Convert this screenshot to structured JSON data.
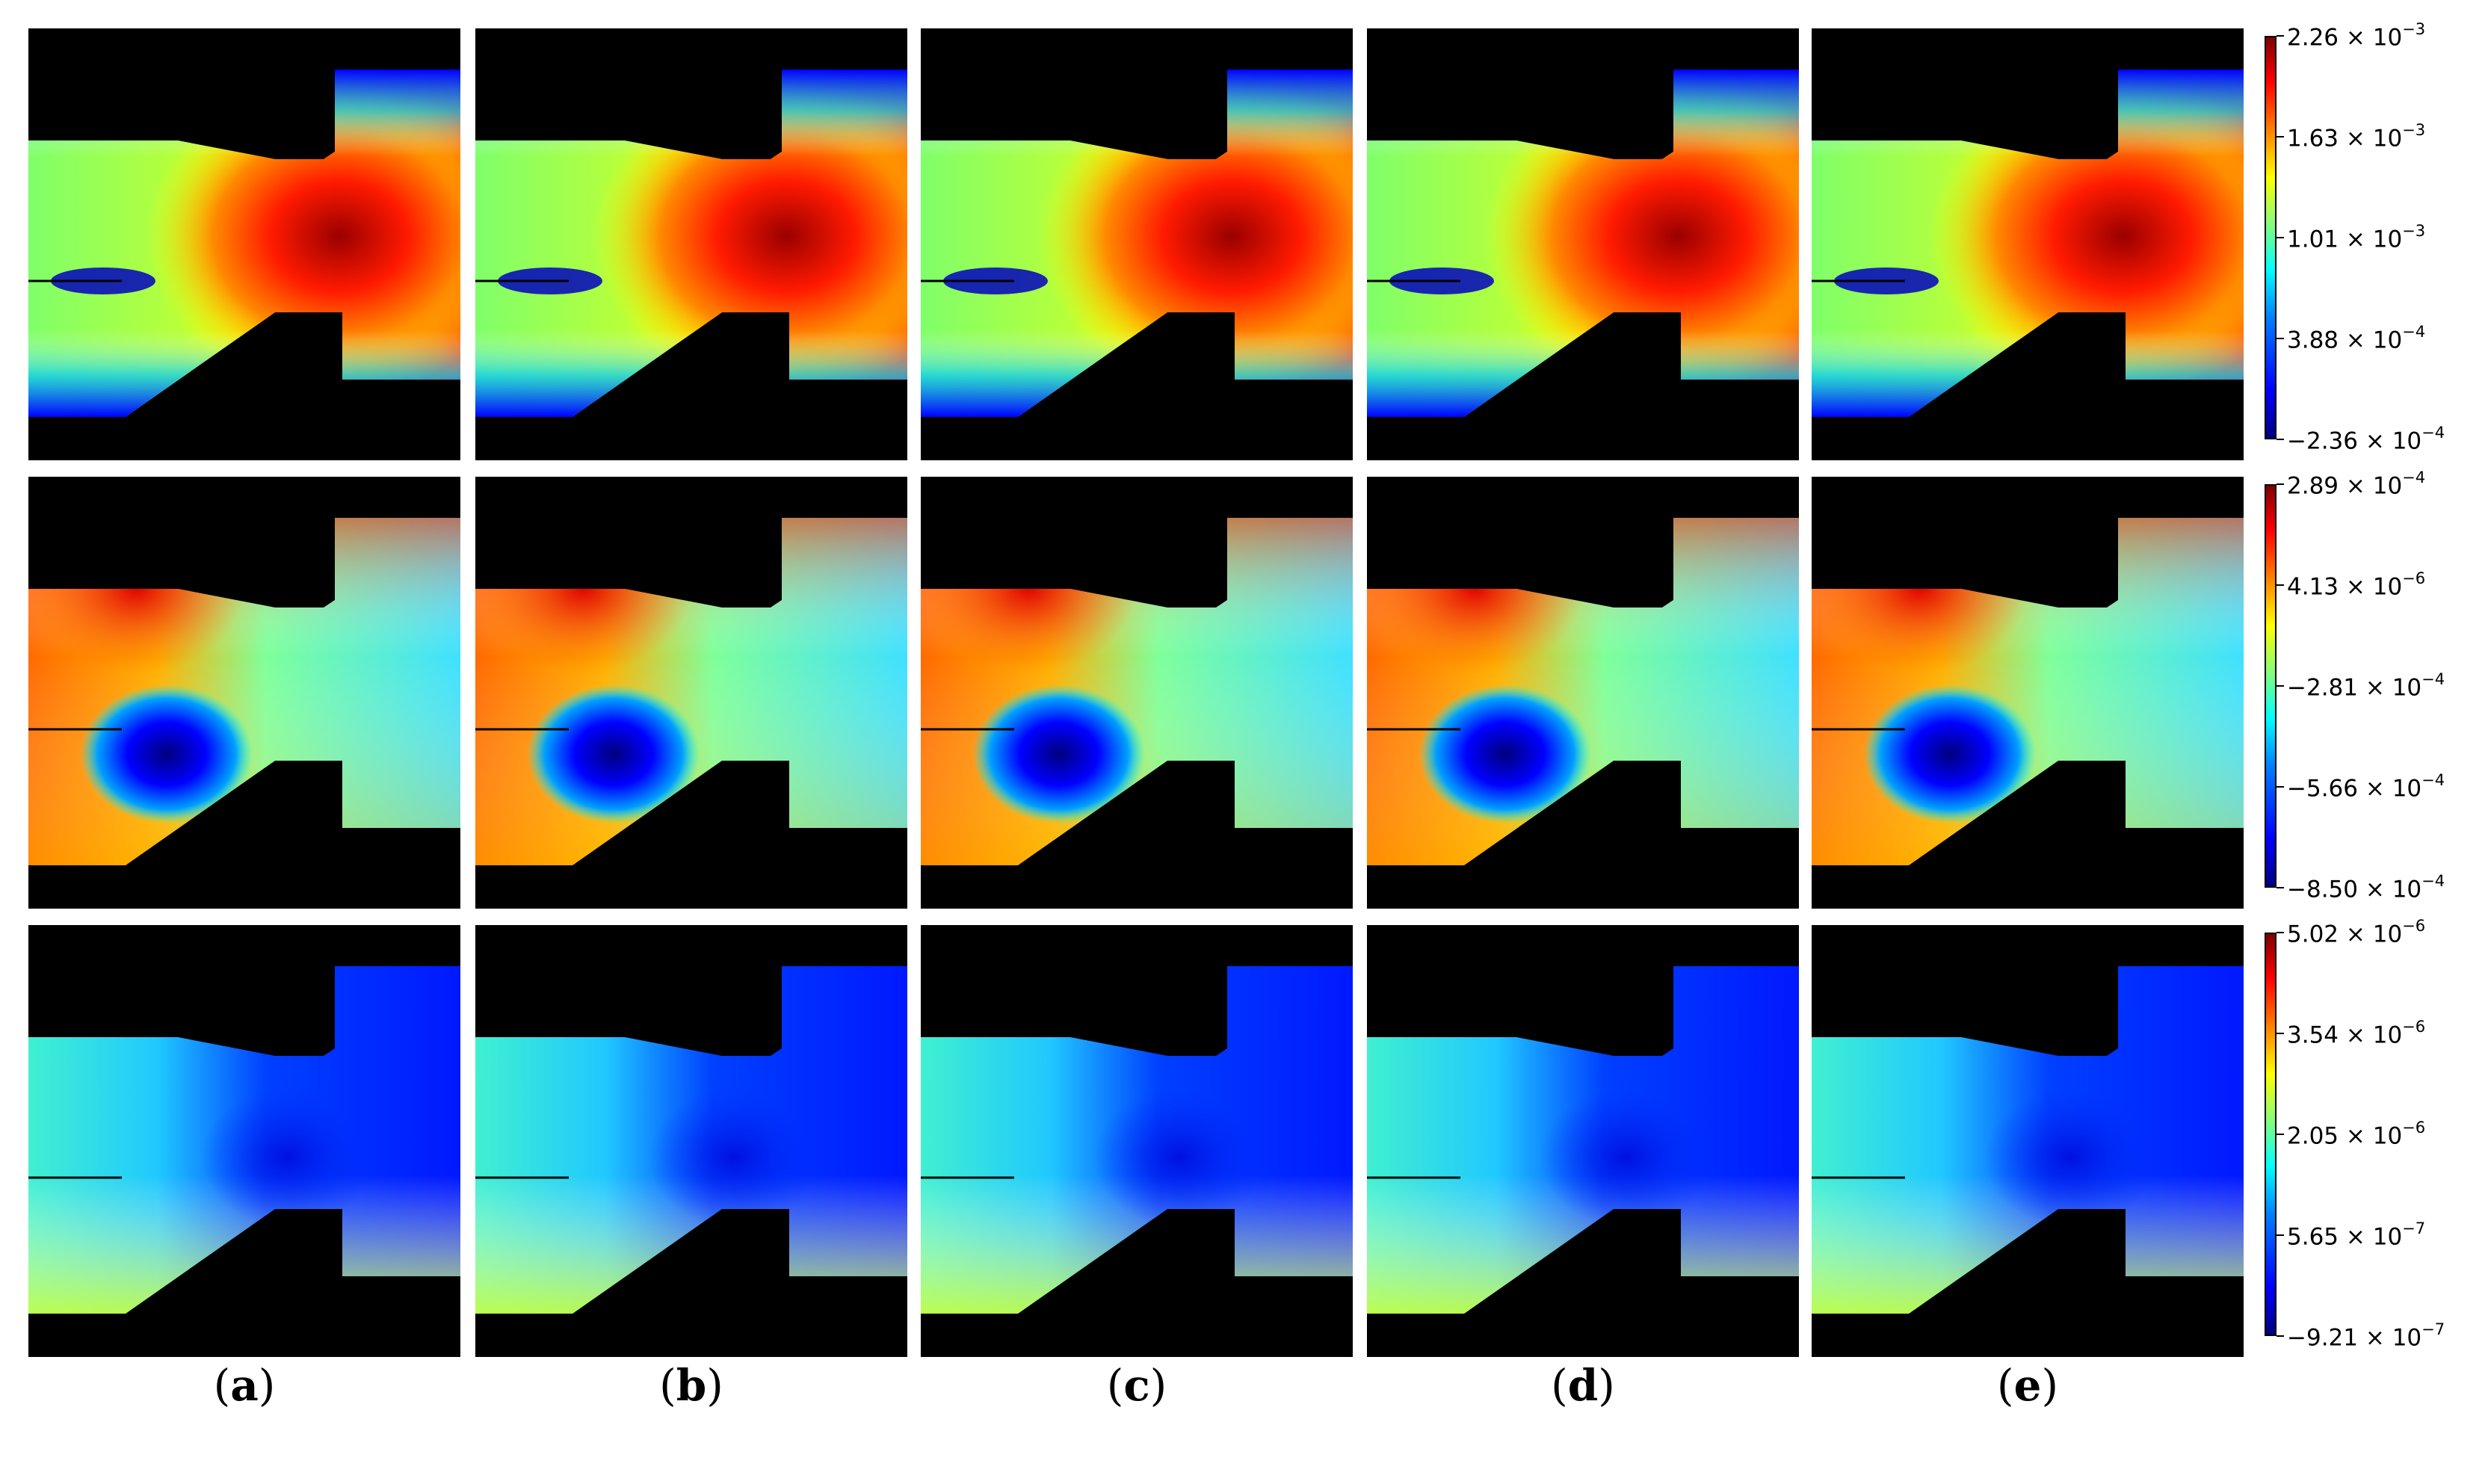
{
  "figure": {
    "columns": [
      "a",
      "b",
      "c",
      "d",
      "e"
    ],
    "rows": [
      {
        "id": "row1",
        "colorbar_ticks": [
          {
            "mantissa": "2.26",
            "exponent": "−3"
          },
          {
            "mantissa": "1.63",
            "exponent": "−3"
          },
          {
            "mantissa": "1.01",
            "exponent": "−3"
          },
          {
            "mantissa": "3.88",
            "exponent": "−4"
          },
          {
            "mantissa": "−2.36",
            "exponent": "−4"
          }
        ]
      },
      {
        "id": "row2",
        "colorbar_ticks": [
          {
            "mantissa": "2.89",
            "exponent": "−4"
          },
          {
            "mantissa": "4.13",
            "exponent": "−6"
          },
          {
            "mantissa": "−2.81",
            "exponent": "−4"
          },
          {
            "mantissa": "−5.66",
            "exponent": "−4"
          },
          {
            "mantissa": "−8.50",
            "exponent": "−4"
          }
        ]
      },
      {
        "id": "row3",
        "colorbar_ticks": [
          {
            "mantissa": "5.02",
            "exponent": "−6"
          },
          {
            "mantissa": "3.54",
            "exponent": "−6"
          },
          {
            "mantissa": "2.05",
            "exponent": "−6"
          },
          {
            "mantissa": "5.65",
            "exponent": "−7"
          },
          {
            "mantissa": "−9.21",
            "exponent": "−7"
          }
        ]
      }
    ],
    "colormap": "jet",
    "times_symbol": "×",
    "power_base": "10"
  }
}
